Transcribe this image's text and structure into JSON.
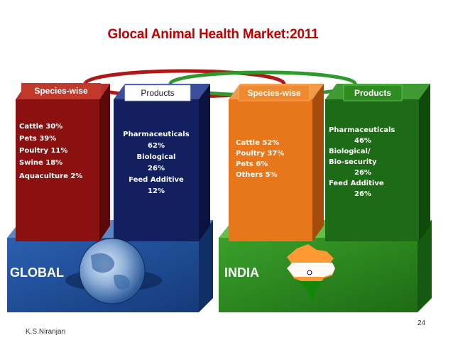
{
  "title": "Glocal Animal Health Market:2011",
  "global": {
    "label": "GLOBAL",
    "species_tab": "Species-wise",
    "products_tab": "Products",
    "species_items": [
      "Cattle  30%",
      "Pets  39%",
      "Poultry 11%",
      "Swine 18%",
      "Aquaculture   2%"
    ],
    "product_items": [
      "Pharmaceuticals",
      "62%",
      "Biological",
      "26%",
      "Feed Additive",
      "12%"
    ]
  },
  "india": {
    "label": "INDIA",
    "species_tab": "Species-wise",
    "products_tab": "Products",
    "species_items": [
      "Cattle 52%",
      "Poultry 37%",
      "Pets 6%",
      "Others 5%"
    ],
    "product_items": [
      "Pharmaceuticals",
      "46%",
      "Biological/",
      "Bio-security",
      "26%",
      "Feed Additive",
      "26%"
    ]
  },
  "footer": {
    "author": "K.S.Niranjan",
    "page_number": "24"
  },
  "colors": {
    "title": "#c00000",
    "global_base": "#1f4e9a",
    "india_base": "#2e8b1f",
    "species_global": "#8b1010",
    "products_global": "#13205f",
    "species_india": "#e8761a",
    "products_india": "#1e6b17",
    "ring_red": "#b01818",
    "ring_green": "#2e9a2e"
  }
}
